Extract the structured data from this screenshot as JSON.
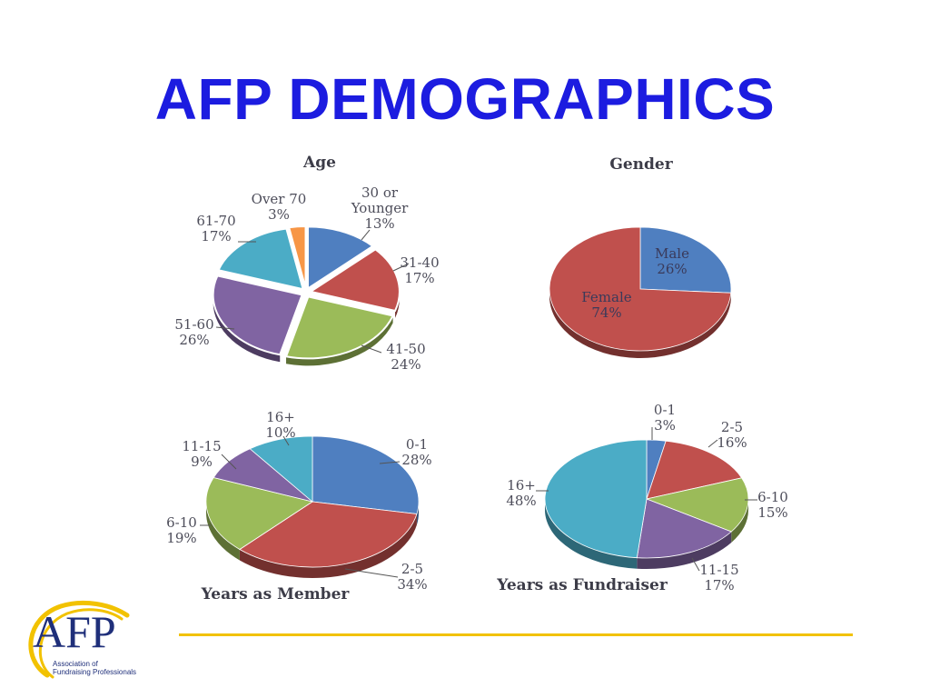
{
  "title": "AFP DEMOGRAPHICS",
  "logo": {
    "mark": "AFP",
    "subtitle_line1": "Association of",
    "subtitle_line2": "Fundraising Professionals"
  },
  "chart_data": [
    {
      "type": "pie",
      "title": "Age",
      "slices": [
        {
          "label": "30 or Younger",
          "value": 13,
          "color": "#4f7fc0"
        },
        {
          "label": "31-40",
          "value": 17,
          "color": "#c0504d"
        },
        {
          "label": "41-50",
          "value": 24,
          "color": "#9bbb59"
        },
        {
          "label": "51-60",
          "value": 26,
          "color": "#8064a2"
        },
        {
          "label": "61-70",
          "value": 17,
          "color": "#4bacc6"
        },
        {
          "label": "Over 70",
          "value": 3,
          "color": "#f79646"
        }
      ]
    },
    {
      "type": "pie",
      "title": "Gender",
      "slices": [
        {
          "label": "Male",
          "value": 26,
          "color": "#4f7fc0"
        },
        {
          "label": "Female",
          "value": 74,
          "color": "#c0504d"
        }
      ]
    },
    {
      "type": "pie",
      "title": "Years as Member",
      "slices": [
        {
          "label": "0-1",
          "value": 28,
          "color": "#4f7fc0"
        },
        {
          "label": "2-5",
          "value": 34,
          "color": "#c0504d"
        },
        {
          "label": "6-10",
          "value": 19,
          "color": "#9bbb59"
        },
        {
          "label": "11-15",
          "value": 9,
          "color": "#8064a2"
        },
        {
          "label": "16+",
          "value": 10,
          "color": "#4bacc6"
        }
      ]
    },
    {
      "type": "pie",
      "title": "Years as Fundraiser",
      "slices": [
        {
          "label": "0-1",
          "value": 3,
          "color": "#4f7fc0"
        },
        {
          "label": "2-5",
          "value": 16,
          "color": "#c0504d"
        },
        {
          "label": "6-10",
          "value": 15,
          "color": "#9bbb59"
        },
        {
          "label": "11-15",
          "value": 17,
          "color": "#8064a2"
        },
        {
          "label": "16+",
          "value": 48,
          "color": "#4bacc6"
        }
      ]
    }
  ]
}
